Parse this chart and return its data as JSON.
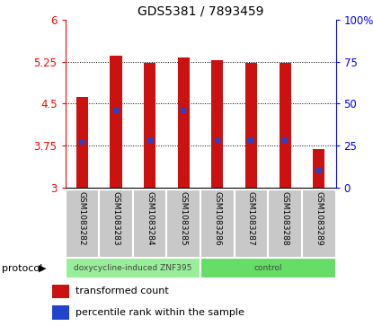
{
  "title": "GDS5381 / 7893459",
  "samples": [
    "GSM1083282",
    "GSM1083283",
    "GSM1083284",
    "GSM1083285",
    "GSM1083286",
    "GSM1083287",
    "GSM1083288",
    "GSM1083289"
  ],
  "bar_top": [
    4.62,
    5.35,
    5.22,
    5.32,
    5.27,
    5.22,
    5.22,
    3.68
  ],
  "bar_bottom": 3.0,
  "blue_marker": [
    3.82,
    4.38,
    3.85,
    4.38,
    3.85,
    3.85,
    3.85,
    3.3
  ],
  "ylim": [
    3.0,
    6.0
  ],
  "yticks_left": [
    3,
    3.75,
    4.5,
    5.25,
    6
  ],
  "yticks_right": [
    0,
    25,
    50,
    75,
    100
  ],
  "bar_color": "#cc1111",
  "blue_color": "#2244cc",
  "protocol_groups": [
    {
      "label": "doxycycline-induced ZNF395",
      "start": 0,
      "end": 4,
      "color": "#99ee99"
    },
    {
      "label": "control",
      "start": 4,
      "end": 8,
      "color": "#66dd66"
    }
  ],
  "legend_red": "transformed count",
  "legend_blue": "percentile rank within the sample",
  "protocol_label": "protocol",
  "bar_width": 0.35
}
